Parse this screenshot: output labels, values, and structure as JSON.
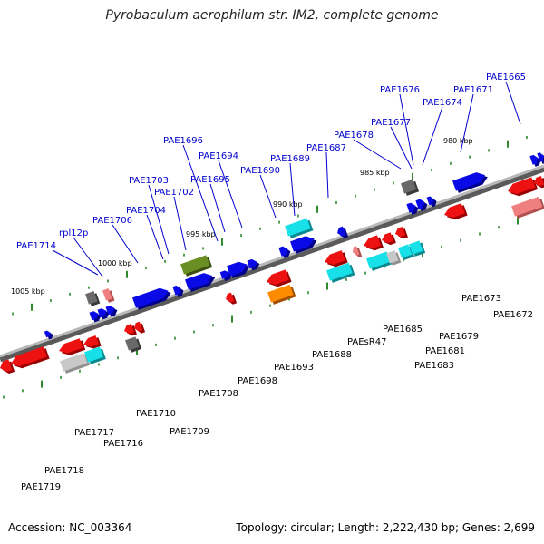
{
  "title": "Pyrobaculum aerophilum str. IM2, complete genome",
  "footer": {
    "accession": "Accession: NC_003364",
    "summary": "Topology: circular; Length: 2,222,430 bp; Genes: 2,699"
  },
  "colors": {
    "backbone": "#808080",
    "tick": "#2e8b2e",
    "forward_label": "#0000cc",
    "reverse_label": "#cc0000",
    "ncrna_label": "#ee88cc",
    "tick_label": "#000000"
  },
  "scale_labels": [
    "1005 kbp",
    "1000 kbp",
    "995 kbp",
    "990 kbp",
    "985 kbp",
    "980 kbp"
  ],
  "upper_labels": [
    "PAE1714",
    "rpl12p",
    "PAE1706",
    "PAE1704",
    "PAE1703",
    "PAE1702",
    "PAE1696",
    "PAE1695",
    "PAE1694",
    "PAE1690",
    "PAE1689",
    "PAE1687",
    "PAE1678",
    "PAE1677",
    "PAE1676",
    "PAE1674",
    "PAE1671",
    "PAE1665"
  ],
  "lower_labels": [
    "PAE1719",
    "PAE1718",
    "PAE1717",
    "PAE1716",
    "PAE1710",
    "PAE1709",
    "PAE1708",
    "PAE1698",
    "PAE1693",
    "PAE1688",
    "PAEsR47",
    "PAE1685",
    "PAE1683",
    "PAE1681",
    "PAE1679",
    "PAE1673",
    "PAE1672"
  ]
}
